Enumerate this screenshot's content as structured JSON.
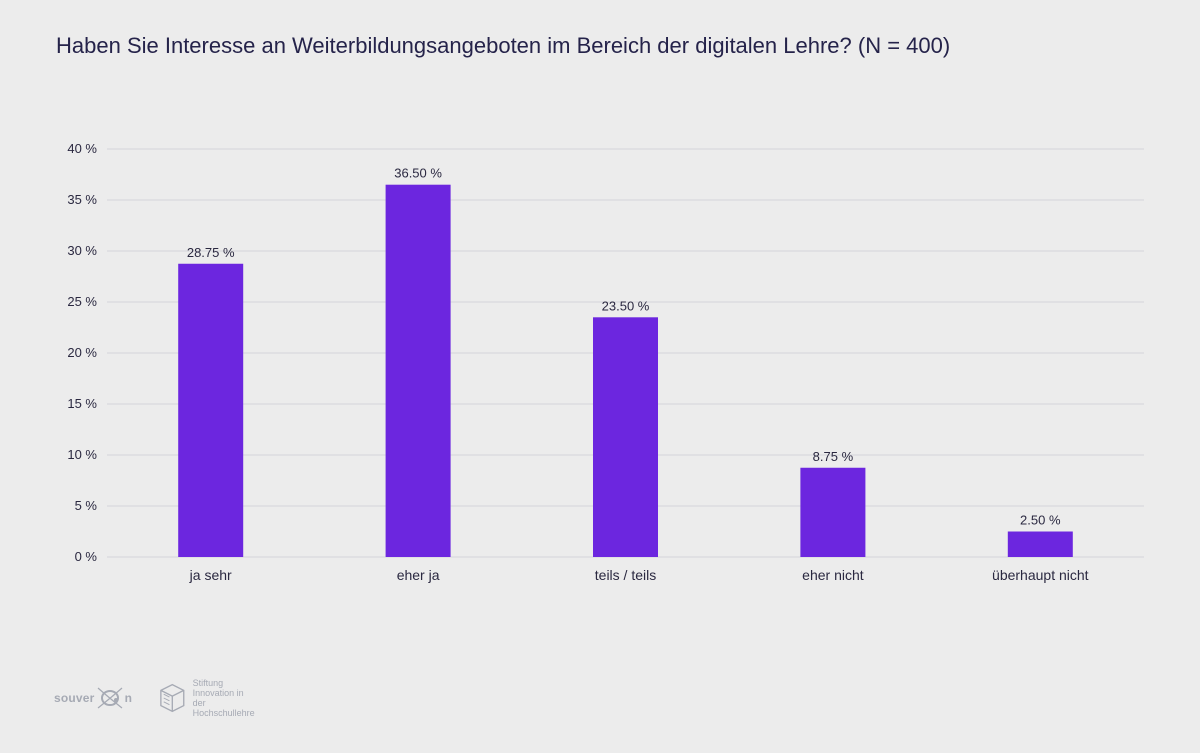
{
  "chart_data": {
    "type": "bar",
    "title": "Haben Sie Interesse an Weiterbildungsangeboten im Bereich der digitalen Lehre? (N = 400)",
    "categories": [
      "ja sehr",
      "eher ja",
      "teils / teils",
      "eher nicht",
      "überhaupt nicht"
    ],
    "values": [
      28.75,
      36.5,
      23.5,
      8.75,
      2.5
    ],
    "data_labels": [
      "28.75 %",
      "36.50 %",
      "23.50 %",
      "8.75 %",
      "2.50 %"
    ],
    "xlabel": "",
    "ylabel": "",
    "ylim": [
      0,
      40
    ],
    "yticks": [
      0,
      5,
      10,
      15,
      20,
      25,
      30,
      35,
      40
    ],
    "ytick_labels": [
      "0 %",
      "5 %",
      "10 %",
      "15 %",
      "20 %",
      "25 %",
      "30 %",
      "35 %",
      "40 %"
    ],
    "grid": true,
    "legend": "none",
    "bar_color": "#6c26df",
    "grid_color": "#d5d5da"
  },
  "logos": {
    "souveran": {
      "text_before": "souver",
      "text_after": "n"
    },
    "stiftung": {
      "line1": "Stiftung",
      "line2": "Innovation in der",
      "line3": "Hochschullehre"
    }
  }
}
